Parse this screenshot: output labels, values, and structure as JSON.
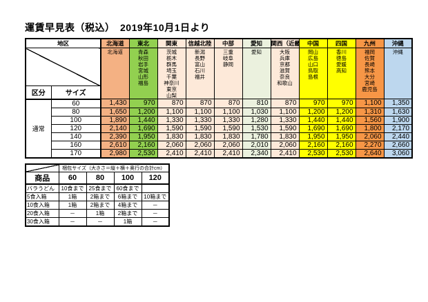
{
  "title": "運賃早見表（税込）　2019年10月1日より",
  "fare_table": {
    "corner_label": "地区",
    "kubun_label": "区分",
    "size_label": "サイズ",
    "row_group_label": "通常",
    "sizes": [
      "60",
      "80",
      "100",
      "120",
      "140",
      "160",
      "170"
    ],
    "regions": [
      {
        "name": "北海道",
        "color": "#f4b183",
        "prefectures": [
          "北海道"
        ],
        "prices": [
          "1,430",
          "1,650",
          "1,890",
          "2,140",
          "2,390",
          "2,610",
          "2,980"
        ]
      },
      {
        "name": "東北",
        "color": "#92d050",
        "prefectures": [
          "青森",
          "秋田",
          "岩手",
          "宮城",
          "山形",
          "福島"
        ],
        "prices": [
          "970",
          "1,200",
          "1,440",
          "1,690",
          "1,950",
          "2,160",
          "2,530"
        ]
      },
      {
        "name": "関東",
        "color": "#fde9d9",
        "prefectures": [
          "茨城",
          "栃木",
          "群馬",
          "埼玉",
          "千葉",
          "神奈川",
          "東京",
          "山梨"
        ],
        "prices": [
          "870",
          "1,100",
          "1,330",
          "1,590",
          "1,830",
          "2,060",
          "2,410"
        ]
      },
      {
        "name": "信越北陸",
        "color": "#fde9d9",
        "prefectures": [
          "新潟",
          "長野",
          "富山",
          "石川",
          "福井"
        ],
        "prices": [
          "870",
          "1,100",
          "1,330",
          "1,590",
          "1,830",
          "2,060",
          "2,410"
        ]
      },
      {
        "name": "中部",
        "color": "#fde9d9",
        "prefectures": [
          "三重",
          "岐阜",
          "静岡"
        ],
        "prices": [
          "870",
          "1,100",
          "1,330",
          "1,590",
          "1,830",
          "2,060",
          "2,410"
        ]
      },
      {
        "name": "愛知",
        "color": "#ebf1de",
        "prefectures": [
          "愛知"
        ],
        "prices": [
          "810",
          "1,030",
          "1,280",
          "1,530",
          "1,780",
          "2,010",
          "2,340"
        ]
      },
      {
        "name": "関西（近畿）",
        "color": "#fde9d9",
        "prefectures": [
          "大阪",
          "兵庫",
          "京都",
          "滋賀",
          "奈良",
          "和歌山"
        ],
        "prices": [
          "870",
          "1,100",
          "1,330",
          "1,590",
          "1,830",
          "2,060",
          "2,410"
        ]
      },
      {
        "name": "中国",
        "color": "#ffff00",
        "prefectures": [
          "岡山",
          "広島",
          "山口",
          "鳥取",
          "島根"
        ],
        "prices": [
          "970",
          "1,200",
          "1,440",
          "1,690",
          "1,950",
          "2,160",
          "2,530"
        ]
      },
      {
        "name": "四国",
        "color": "#ffff00",
        "prefectures": [
          "香川",
          "徳島",
          "愛媛",
          "高知"
        ],
        "prices": [
          "970",
          "1,200",
          "1,440",
          "1,690",
          "1,950",
          "2,160",
          "2,530"
        ]
      },
      {
        "name": "九州",
        "color": "#f79646",
        "prefectures": [
          "福岡",
          "佐賀",
          "長崎",
          "熊本",
          "大分",
          "宮崎",
          "鹿児島"
        ],
        "prices": [
          "1,100",
          "1,310",
          "1,560",
          "1,800",
          "2,060",
          "2,270",
          "2,640"
        ]
      },
      {
        "name": "沖縄",
        "color": "#bdd7ee",
        "prefectures": [
          "沖縄"
        ],
        "prices": [
          "1,350",
          "1,630",
          "1,900",
          "2,170",
          "2,440",
          "2,660",
          "3,060"
        ]
      }
    ]
  },
  "packing_table": {
    "header": "梱包サイズ（大きさ＝縦＋横＋奥行の合計cm）",
    "product_label": "商品",
    "size_columns": [
      "60",
      "80",
      "100",
      "120"
    ],
    "rows": [
      {
        "product": "バラうどん",
        "values": [
          "10食まで",
          "25食まで",
          "60食まで",
          ""
        ]
      },
      {
        "product": "5食入箱",
        "values": [
          "1箱",
          "2箱まで",
          "6箱まで",
          "10箱まで"
        ]
      },
      {
        "product": "10食入箱",
        "values": [
          "1箱",
          "2箱まで",
          "4箱まで",
          "－"
        ]
      },
      {
        "product": "20食入箱",
        "values": [
          "－",
          "1箱",
          "2箱まで",
          "－"
        ]
      },
      {
        "product": "30食入箱",
        "values": [
          "－",
          "－",
          "1箱",
          "－"
        ]
      }
    ]
  }
}
